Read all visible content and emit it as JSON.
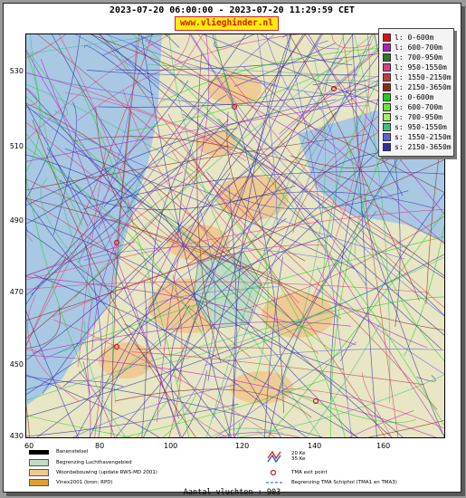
{
  "header": {
    "time_range": "2023-07-20 06:00:00 - 2023-07-20 11:29:59 CET",
    "site": "www.vlieghinder.nl"
  },
  "axes": {
    "y_ticks": [
      "530",
      "510",
      "490",
      "470",
      "450",
      "430"
    ],
    "x_ticks": [
      "60",
      "80",
      "100",
      "120",
      "140",
      "160"
    ]
  },
  "legend": {
    "items": [
      {
        "label": "l: 0-600m",
        "color": "#e01010"
      },
      {
        "label": "l: 600-700m",
        "color": "#b020c0"
      },
      {
        "label": "l: 700-950m",
        "color": "#2a7a2a"
      },
      {
        "label": "l: 950-1550m",
        "color": "#e04080"
      },
      {
        "label": "l: 1550-2150m",
        "color": "#c04040"
      },
      {
        "label": "l: 2150-3650m",
        "color": "#8a2a1a"
      },
      {
        "label": "s: 0-600m",
        "color": "#20d020"
      },
      {
        "label": "s: 600-700m",
        "color": "#70e040"
      },
      {
        "label": "s: 700-950m",
        "color": "#a0f060"
      },
      {
        "label": "s: 950-1550m",
        "color": "#40c080"
      },
      {
        "label": "s: 1550-2150m",
        "color": "#6060e0"
      },
      {
        "label": "s: 2150-3650m",
        "color": "#3030a0"
      }
    ]
  },
  "map_legend": {
    "runway": "Banenstelsel",
    "airport_boundary": "Begrenzing Luchthavengebied",
    "housing": "Woonbebouwing (update RWS-MD 2001)",
    "vinex": "Vinex2001 (bron: RPD)",
    "ke_20": "20 Ke",
    "ke_35": "35 Ke",
    "tma_exit": "TMA exit point",
    "tma_boundary": "Begrenzing TMA Schiphol  (TMA1 en TMA3)"
  },
  "footer": {
    "flights_count": "Aantal vluchten : 903"
  },
  "colors": {
    "sea": "#a8c8e4",
    "land": "#e8e6c4",
    "urban": "#f0c890",
    "airport": "#c0dcc4"
  }
}
